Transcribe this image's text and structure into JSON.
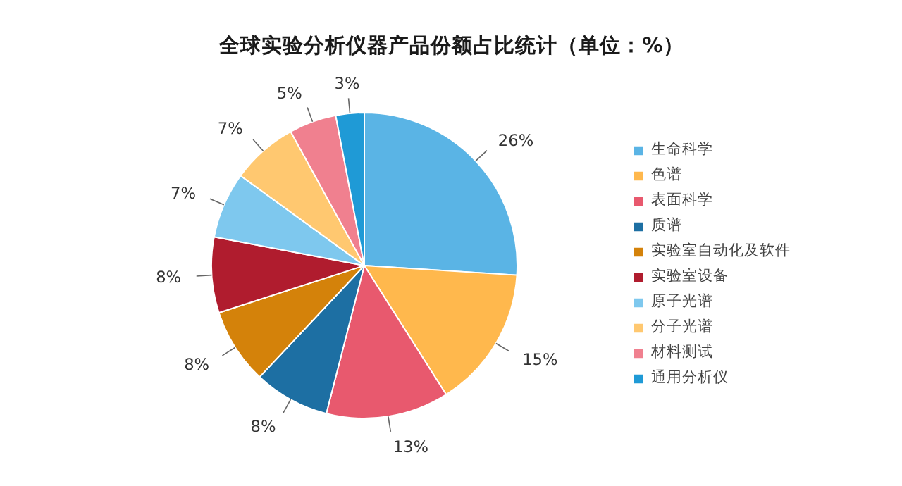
{
  "chart_data": {
    "type": "pie",
    "title": "全球实验分析仪器产品份额占比统计（单位：%）",
    "categories": [
      "生命科学",
      "色谱",
      "表面科学",
      "质谱",
      "实验室自动化及软件",
      "实验室设备",
      "原子光谱",
      "分子光谱",
      "材料测试",
      "通用分析仪"
    ],
    "values": [
      26,
      15,
      13,
      8,
      8,
      8,
      7,
      7,
      5,
      3
    ],
    "value_labels": [
      "26%",
      "15%",
      "13%",
      "8%",
      "8%",
      "8%",
      "7%",
      "7%",
      "5%",
      "3%"
    ],
    "colors": [
      "#5ab4e5",
      "#ffb84d",
      "#e8596e",
      "#1d6fa3",
      "#d4820a",
      "#b01c2e",
      "#7ec8ee",
      "#ffc870",
      "#f0808f",
      "#1f9ad6"
    ],
    "legend": "right"
  }
}
